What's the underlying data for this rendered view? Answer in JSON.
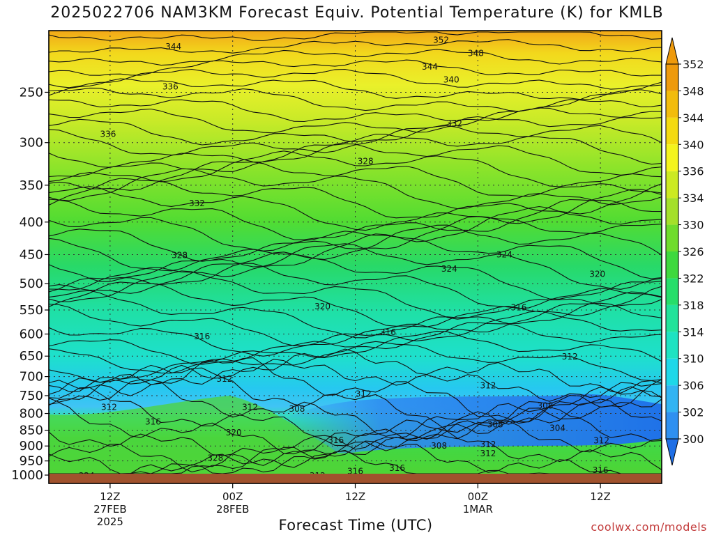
{
  "title": "2025022706 NAM3KM Forecast Equiv. Potential Temperature (K) for KMLB",
  "credit": "coolwx.com/models",
  "chart_data": {
    "type": "heatmap",
    "title": "2025022706 NAM3KM Forecast Equiv. Potential Temperature (K) for KMLB",
    "xlabel": "Forecast Time (UTC)",
    "ylabel": "",
    "y_axis": {
      "scale": "log-pressure",
      "direction": "decreasing-upward",
      "range": [
        1000,
        200
      ],
      "ticks": [
        250,
        300,
        350,
        400,
        450,
        500,
        550,
        600,
        650,
        700,
        750,
        800,
        850,
        900,
        950,
        1000
      ]
    },
    "x_axis": {
      "unit": "hours since 2025-02-27 06Z",
      "range": [
        0,
        60
      ],
      "ticks": [
        {
          "hour": 6,
          "lines": [
            "12Z",
            "27FEB",
            "2025"
          ]
        },
        {
          "hour": 18,
          "lines": [
            "00Z",
            "28FEB"
          ]
        },
        {
          "hour": 30,
          "lines": [
            "12Z"
          ]
        },
        {
          "hour": 42,
          "lines": [
            "00Z",
            "1MAR"
          ]
        },
        {
          "hour": 54,
          "lines": [
            "12Z"
          ]
        }
      ]
    },
    "colorbar": {
      "ticks": [
        300,
        302,
        306,
        310,
        314,
        318,
        322,
        326,
        330,
        334,
        336,
        340,
        344,
        348,
        352
      ],
      "colors": [
        "#1f6fe6",
        "#2f90f0",
        "#32b4f2",
        "#1ed8e8",
        "#1ee3c2",
        "#22e39a",
        "#26de6a",
        "#3ed93e",
        "#6fdc2c",
        "#a4e02a",
        "#ccea22",
        "#f4f41c",
        "#f4da10",
        "#f2bc0c",
        "#ee9a0c"
      ]
    },
    "contour_labels": [
      {
        "x": 12.2,
        "p": 212,
        "text": "344"
      },
      {
        "x": 38.4,
        "p": 207,
        "text": "352"
      },
      {
        "x": 41.8,
        "p": 217,
        "text": "348"
      },
      {
        "x": 37.3,
        "p": 228,
        "text": "344"
      },
      {
        "x": 39.4,
        "p": 239,
        "text": "340"
      },
      {
        "x": 11.9,
        "p": 245,
        "text": "336"
      },
      {
        "x": 39.7,
        "p": 280,
        "text": "332"
      },
      {
        "x": 5.8,
        "p": 291,
        "text": "336"
      },
      {
        "x": 31.0,
        "p": 321,
        "text": "328"
      },
      {
        "x": 14.5,
        "p": 374,
        "text": "332"
      },
      {
        "x": 12.8,
        "p": 451,
        "text": "328"
      },
      {
        "x": 44.6,
        "p": 450,
        "text": "324"
      },
      {
        "x": 39.2,
        "p": 474,
        "text": "324"
      },
      {
        "x": 53.7,
        "p": 483,
        "text": "320"
      },
      {
        "x": 26.8,
        "p": 543,
        "text": "320"
      },
      {
        "x": 46.0,
        "p": 545,
        "text": "316"
      },
      {
        "x": 15.0,
        "p": 605,
        "text": "316"
      },
      {
        "x": 33.2,
        "p": 596,
        "text": "316"
      },
      {
        "x": 51.0,
        "p": 651,
        "text": "312"
      },
      {
        "x": 17.2,
        "p": 706,
        "text": "312"
      },
      {
        "x": 43.0,
        "p": 723,
        "text": "312"
      },
      {
        "x": 30.8,
        "p": 745,
        "text": "312"
      },
      {
        "x": 48.6,
        "p": 778,
        "text": "308"
      },
      {
        "x": 5.9,
        "p": 782,
        "text": "312"
      },
      {
        "x": 19.7,
        "p": 782,
        "text": "312"
      },
      {
        "x": 24.3,
        "p": 787,
        "text": "308"
      },
      {
        "x": 10.2,
        "p": 825,
        "text": "316"
      },
      {
        "x": 49.8,
        "p": 843,
        "text": "304"
      },
      {
        "x": 43.7,
        "p": 833,
        "text": "308"
      },
      {
        "x": 18.1,
        "p": 857,
        "text": "320"
      },
      {
        "x": 28.1,
        "p": 881,
        "text": "316"
      },
      {
        "x": 54.1,
        "p": 883,
        "text": "312"
      },
      {
        "x": 43.0,
        "p": 895,
        "text": "312"
      },
      {
        "x": 38.2,
        "p": 900,
        "text": "308"
      },
      {
        "x": 43.0,
        "p": 925,
        "text": "312"
      },
      {
        "x": 16.3,
        "p": 940,
        "text": "328"
      },
      {
        "x": 34.1,
        "p": 975,
        "text": "316"
      },
      {
        "x": 30.0,
        "p": 986,
        "text": "316"
      },
      {
        "x": 54.0,
        "p": 983,
        "text": "316"
      },
      {
        "x": 26.3,
        "p": 1003,
        "text": "312"
      },
      {
        "x": 3.7,
        "p": 1003,
        "text": "324"
      }
    ]
  }
}
